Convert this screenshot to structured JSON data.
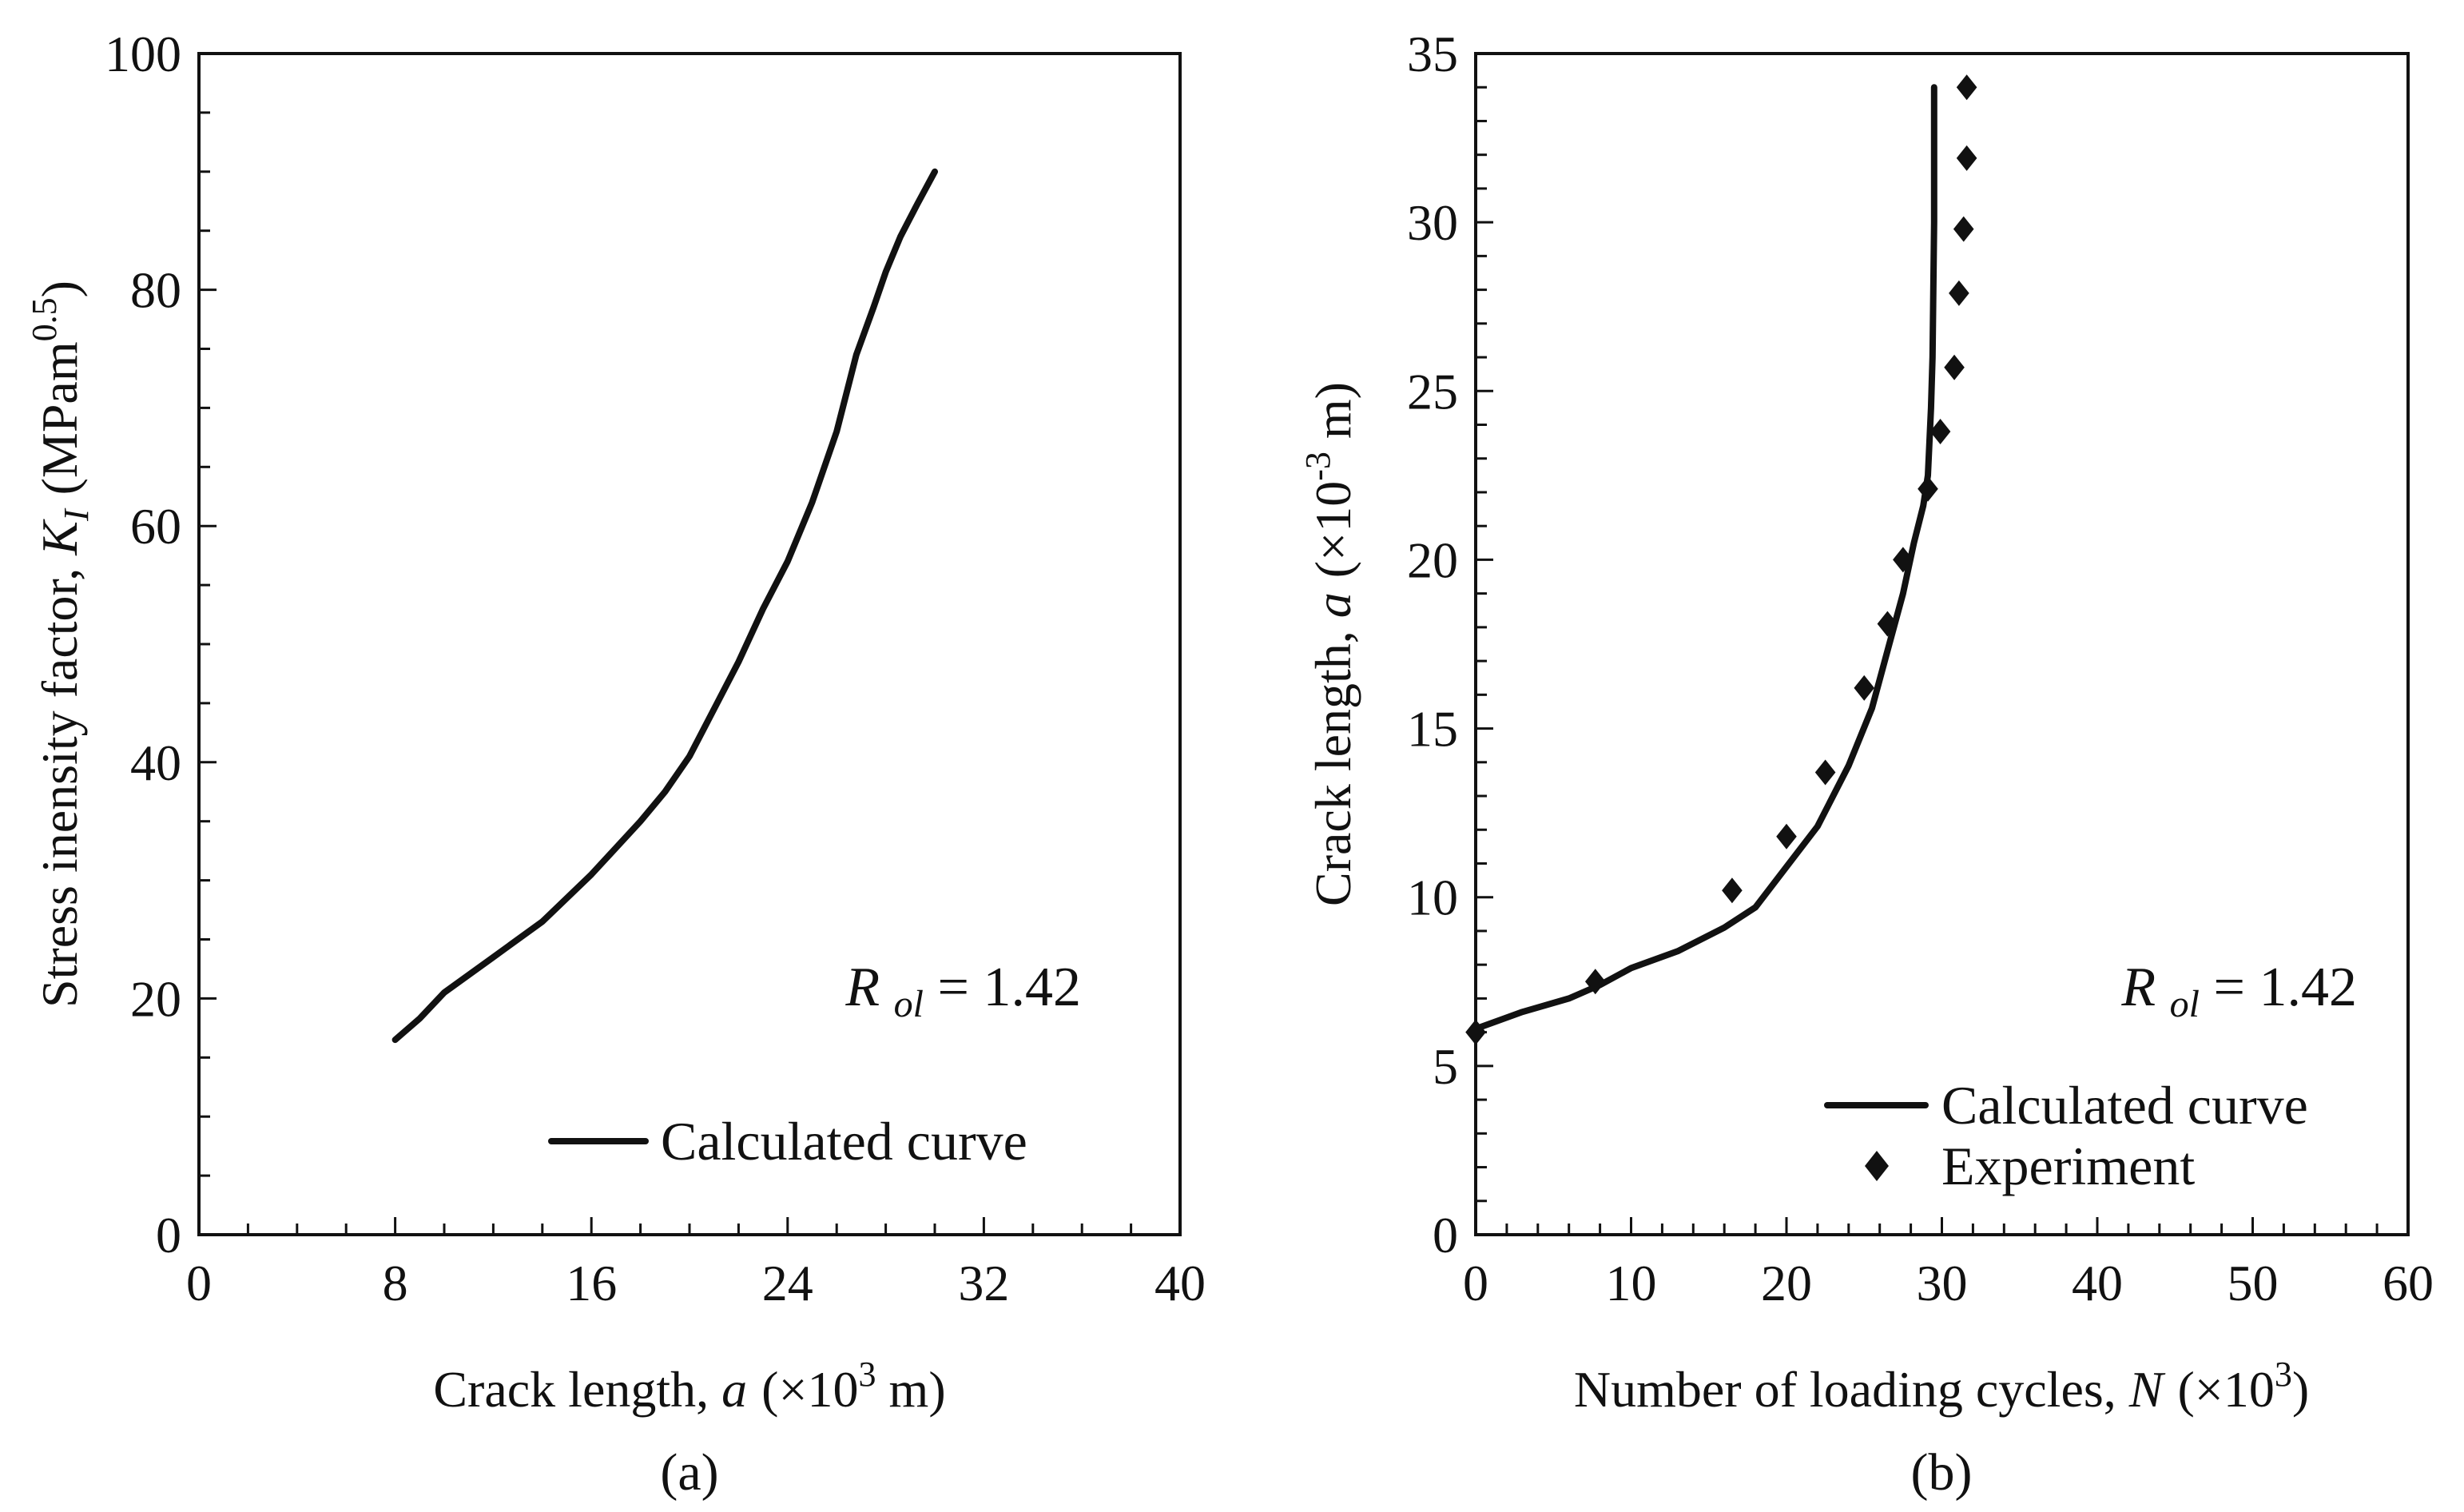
{
  "chart_data": [
    {
      "type": "line",
      "panel_caption": "(a)",
      "title": "",
      "xlabel": {
        "text": "Crack length, ",
        "var": "a",
        "unit_pre": "(×10",
        "unit_exp": "3",
        "unit_post": " m)"
      },
      "ylabel": {
        "text": "Stress inensity factor, ",
        "var": "K",
        "var_sub": "I",
        "unit_pre": "(MPam",
        "unit_exp": "0.5",
        "unit_post": ")"
      },
      "xlim": [
        0,
        40
      ],
      "ylim": [
        0,
        100
      ],
      "xticks": [
        0,
        8,
        16,
        24,
        32,
        40
      ],
      "yticks": [
        0,
        20,
        40,
        60,
        80,
        100
      ],
      "x_minor_step": 2,
      "y_minor_step": 5,
      "grid": false,
      "annotation": {
        "var": "R",
        "sub": "ol",
        "text": " = 1.42"
      },
      "legend_position": "bottom-right",
      "series": [
        {
          "name": "Calculated curve",
          "style": "line",
          "x": [
            8,
            9,
            10,
            12,
            14,
            16,
            18,
            19,
            20,
            21,
            22,
            23,
            24,
            25,
            26,
            26.8,
            27.5,
            28,
            28.6,
            29.3,
            30
          ],
          "y": [
            16.5,
            18.3,
            20.5,
            23.5,
            26.5,
            30.5,
            35,
            37.5,
            40.5,
            44.5,
            48.5,
            53,
            57,
            62,
            68,
            74.5,
            78.5,
            81.5,
            84.5,
            87.3,
            90
          ]
        }
      ]
    },
    {
      "type": "line",
      "panel_caption": "(b)",
      "title": "",
      "xlabel": {
        "text": "Number of loading cycles, ",
        "var": "N",
        "unit_pre": "(×10",
        "unit_exp": "3",
        "unit_post": ")"
      },
      "ylabel": {
        "text": "Crack length, ",
        "var": "a",
        "unit_pre": "(×10",
        "unit_exp": "-3",
        "unit_post": " m)"
      },
      "xlim": [
        0,
        60
      ],
      "ylim": [
        0,
        35
      ],
      "xticks": [
        0,
        10,
        20,
        30,
        40,
        50,
        60
      ],
      "yticks": [
        0,
        5,
        10,
        15,
        20,
        25,
        30,
        35
      ],
      "x_minor_step": 2,
      "y_minor_step": 1,
      "grid": false,
      "annotation": {
        "var": "R",
        "sub": "ol",
        "text": " = 1.42"
      },
      "legend_position": "bottom-right",
      "series": [
        {
          "name": "Calculated curve",
          "style": "line",
          "x": [
            0,
            3,
            6,
            8,
            10,
            13,
            16,
            18,
            20,
            22,
            24,
            25.5,
            26.5,
            27.5,
            28.2,
            28.8,
            29.1,
            29.3,
            29.4,
            29.5,
            29.5
          ],
          "y": [
            6.1,
            6.6,
            7.0,
            7.4,
            7.9,
            8.4,
            9.1,
            9.7,
            10.9,
            12.1,
            13.9,
            15.6,
            17.3,
            19.0,
            20.5,
            21.6,
            22.5,
            24.5,
            26,
            30,
            34
          ]
        },
        {
          "name": "Experiment",
          "style": "marker",
          "x": [
            0,
            7.7,
            16.5,
            20,
            22.5,
            25,
            26.5,
            27.5,
            29.1,
            29.9,
            30.8,
            31.1,
            31.4,
            31.6,
            31.6
          ],
          "y": [
            6.0,
            7.5,
            10.2,
            11.8,
            13.7,
            16.2,
            18.1,
            20.0,
            22.1,
            23.8,
            25.7,
            27.9,
            29.8,
            31.9,
            34.0
          ]
        }
      ]
    }
  ]
}
